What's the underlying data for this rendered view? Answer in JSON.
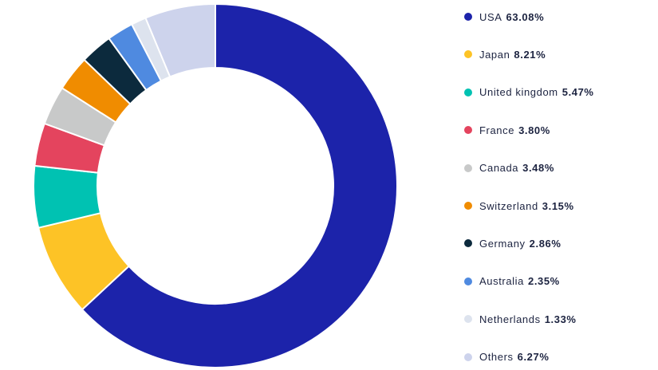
{
  "chart_data": {
    "type": "pie",
    "variant": "donut",
    "title": "",
    "legend_position": "right",
    "slices": [
      {
        "label": "USA",
        "value": 63.08,
        "value_text": "63.08%",
        "color": "#1c23aa"
      },
      {
        "label": "Japan",
        "value": 8.21,
        "value_text": "8.21%",
        "color": "#fdc326"
      },
      {
        "label": "United kingdom",
        "value": 5.47,
        "value_text": "5.47%",
        "color": "#00c2b2"
      },
      {
        "label": "France",
        "value": 3.8,
        "value_text": "3.80%",
        "color": "#e4445e"
      },
      {
        "label": "Canada",
        "value": 3.48,
        "value_text": "3.48%",
        "color": "#c8c9c9"
      },
      {
        "label": "Switzerland",
        "value": 3.15,
        "value_text": "3.15%",
        "color": "#f08c00"
      },
      {
        "label": "Germany",
        "value": 2.86,
        "value_text": "2.86%",
        "color": "#0c2a3d"
      },
      {
        "label": "Australia",
        "value": 2.35,
        "value_text": "2.35%",
        "color": "#4f8ae0"
      },
      {
        "label": "Netherlands",
        "value": 1.33,
        "value_text": "1.33%",
        "color": "#dde3ee"
      },
      {
        "label": "Others",
        "value": 6.27,
        "value_text": "6.27%",
        "color": "#cdd3ec"
      }
    ]
  }
}
